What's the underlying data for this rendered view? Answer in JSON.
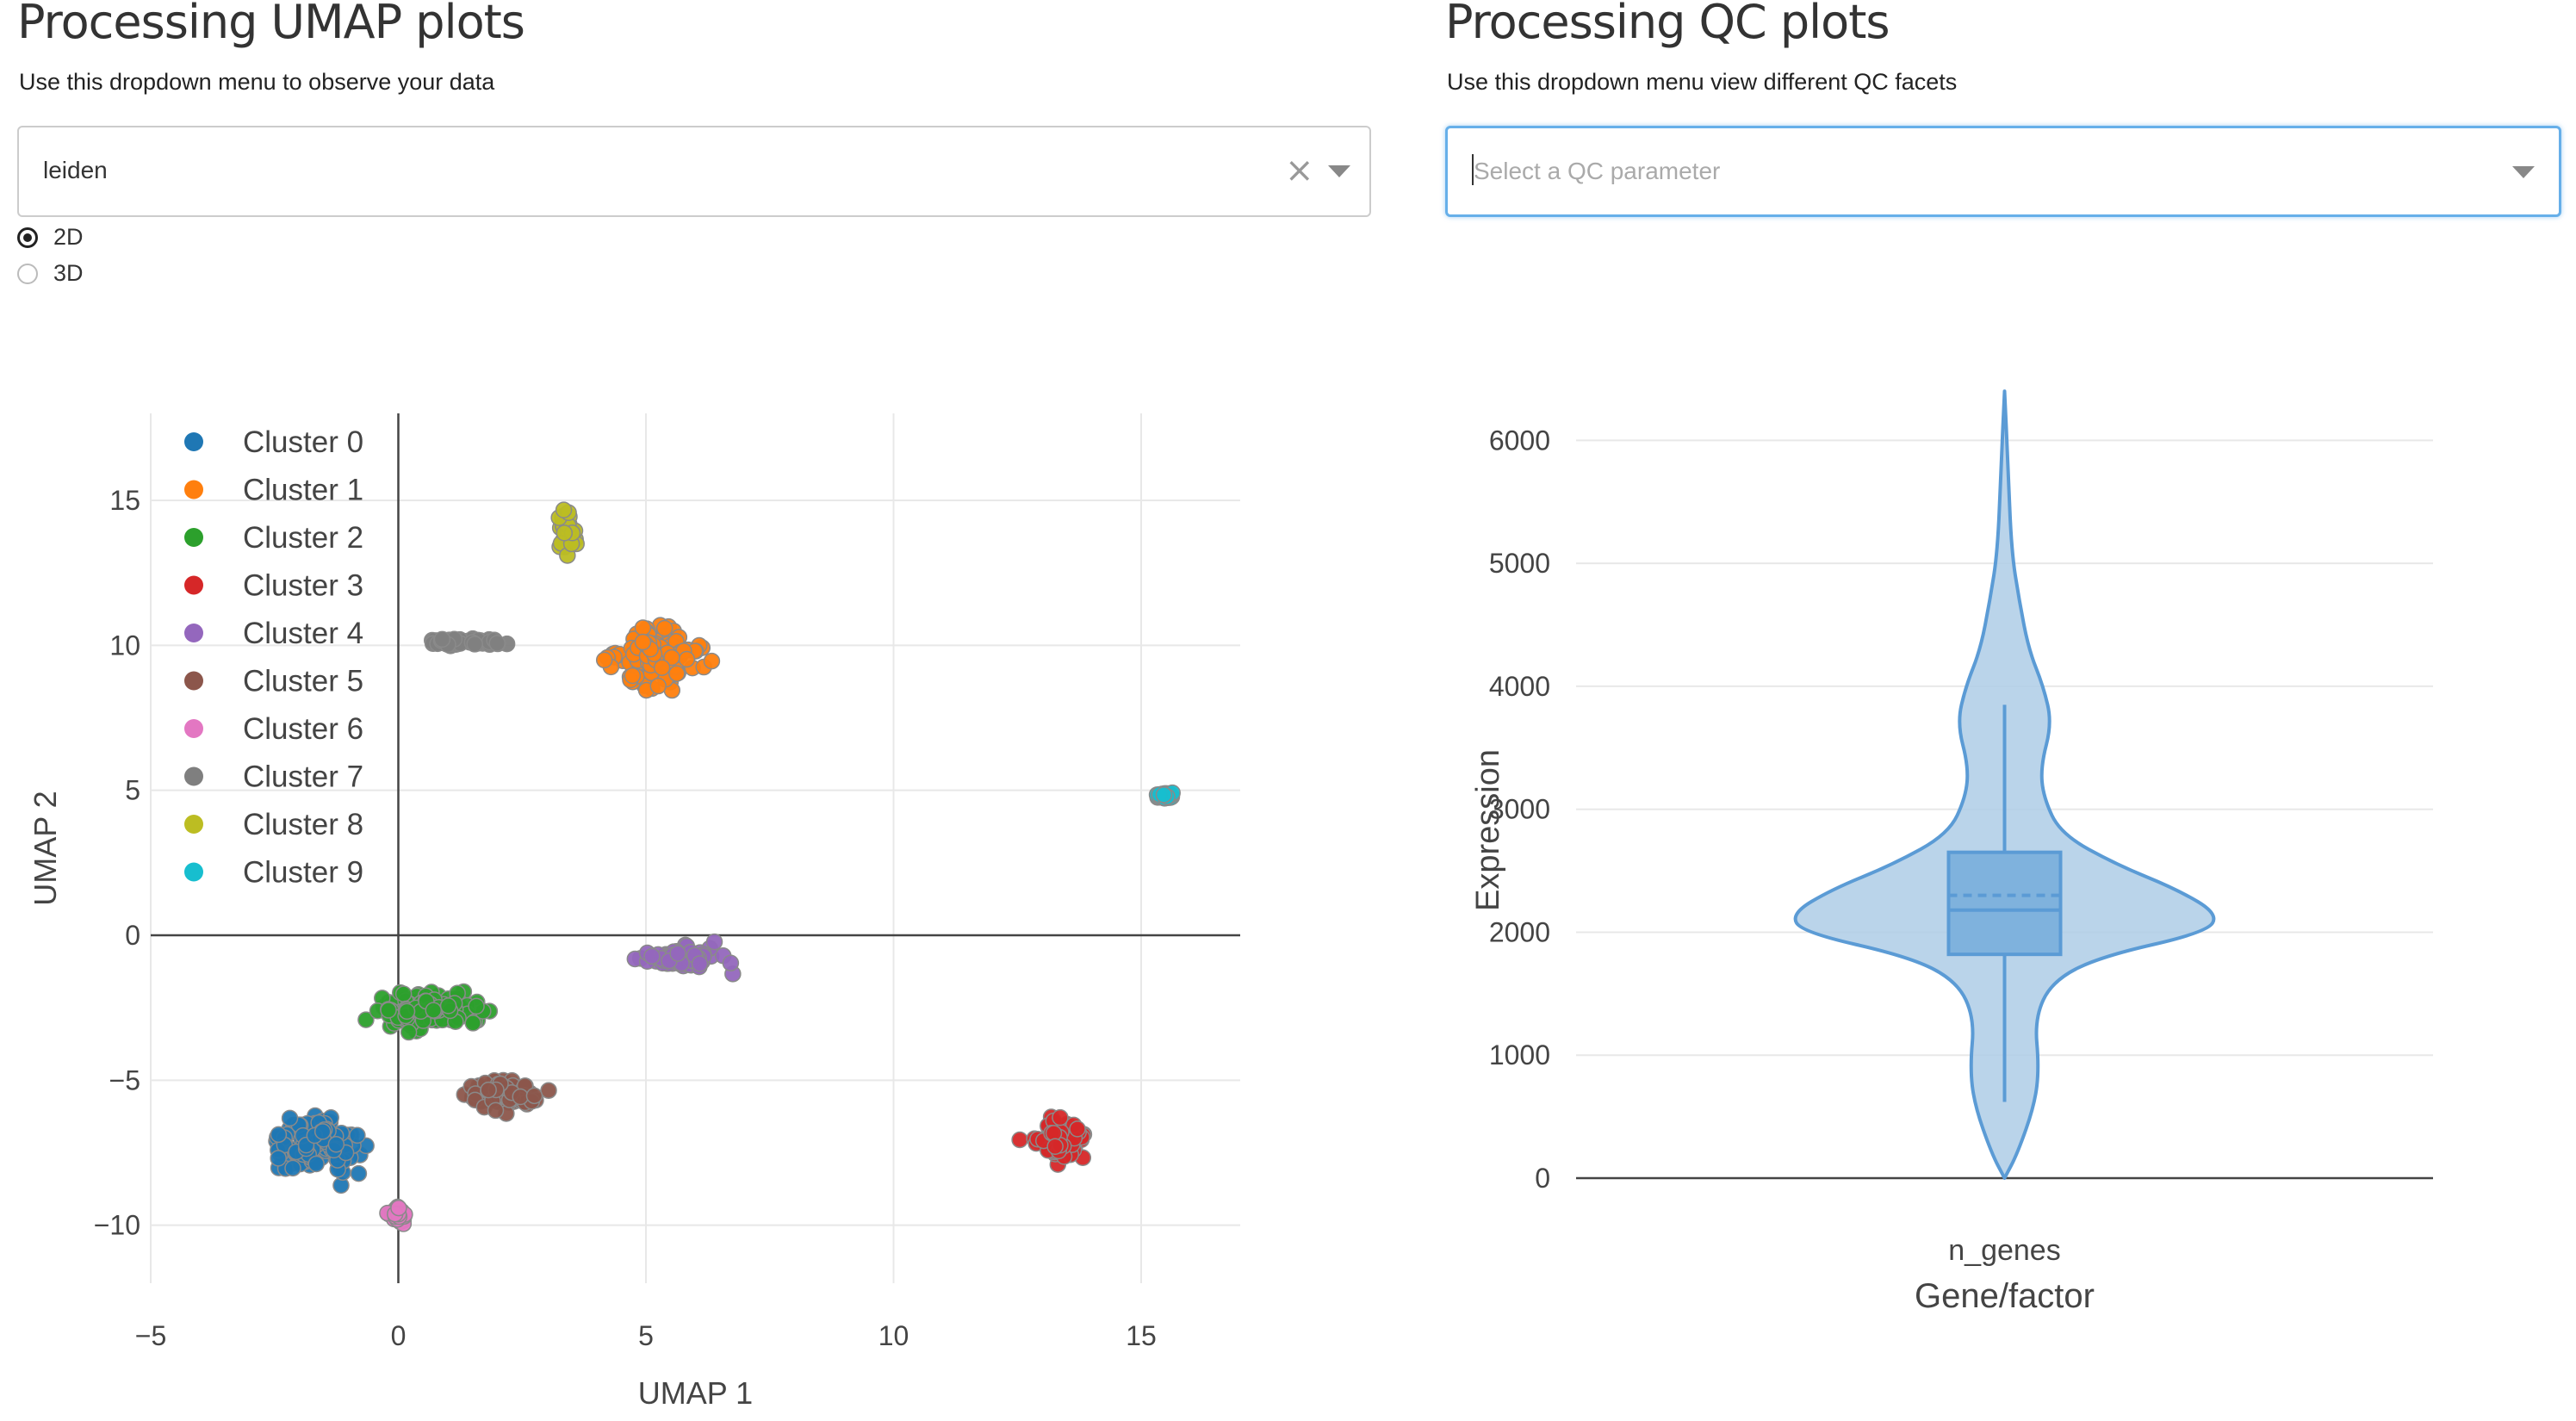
{
  "umap_panel": {
    "title": "Processing UMAP plots",
    "subtitle": "Use this dropdown menu to observe your data",
    "dropdown_value": "leiden",
    "clear_glyph": "×",
    "radio_options": [
      {
        "label": "2D",
        "checked": true
      },
      {
        "label": "3D",
        "checked": false
      }
    ]
  },
  "qc_panel": {
    "title": "Processing QC plots",
    "subtitle": "Use this dropdown menu view different QC facets",
    "dropdown_placeholder": "Select a QC parameter"
  },
  "colors": {
    "focus_border": "#66afe9",
    "violin_fill": "#aecde6",
    "violin_line": "#5b9bd5"
  },
  "chart_data": [
    {
      "type": "scatter",
      "xlabel": "UMAP 1",
      "ylabel": "UMAP 2",
      "xlim": [
        -5,
        17
      ],
      "ylim": [
        -12,
        18
      ],
      "xticks": [
        -5,
        0,
        5,
        10,
        15
      ],
      "yticks": [
        -10,
        -5,
        0,
        5,
        10,
        15
      ],
      "grid": true,
      "legend_position": "top-left",
      "series": [
        {
          "name": "Cluster 0",
          "color": "#1f77b4",
          "center": [
            -1.7,
            -7.2
          ],
          "spread": [
            1.4,
            1.4
          ]
        },
        {
          "name": "Cluster 1",
          "color": "#ff7f0e",
          "center": [
            5.2,
            9.6
          ],
          "spread": [
            1.4,
            1.6
          ]
        },
        {
          "name": "Cluster 2",
          "color": "#2ca02c",
          "center": [
            0.6,
            -2.6
          ],
          "spread": [
            1.8,
            1.1
          ]
        },
        {
          "name": "Cluster 3",
          "color": "#d62728",
          "center": [
            13.3,
            -7.0
          ],
          "spread": [
            0.9,
            1.2
          ]
        },
        {
          "name": "Cluster 4",
          "color": "#9467bd",
          "center": [
            5.8,
            -0.8
          ],
          "spread": [
            1.4,
            0.7
          ]
        },
        {
          "name": "Cluster 5",
          "color": "#8c564b",
          "center": [
            2.2,
            -5.5
          ],
          "spread": [
            1.3,
            0.9
          ]
        },
        {
          "name": "Cluster 6",
          "color": "#e377c2",
          "center": [
            0.0,
            -9.6
          ],
          "spread": [
            0.35,
            0.4
          ]
        },
        {
          "name": "Cluster 7",
          "color": "#7f7f7f",
          "center": [
            1.3,
            10.1
          ],
          "spread": [
            1.2,
            0.25
          ]
        },
        {
          "name": "Cluster 8",
          "color": "#bcbd22",
          "center": [
            3.4,
            14.0
          ],
          "spread": [
            0.35,
            1.2
          ]
        },
        {
          "name": "Cluster 9",
          "color": "#17becf",
          "center": [
            15.5,
            4.8
          ],
          "spread": [
            0.25,
            0.2
          ]
        }
      ]
    },
    {
      "type": "violin",
      "xlabel": "Gene/factor",
      "ylabel": "Expression",
      "categories": [
        "n_genes"
      ],
      "ylim": [
        0,
        6500
      ],
      "yticks": [
        0,
        1000,
        2000,
        3000,
        4000,
        5000,
        6000
      ],
      "grid": true,
      "box": {
        "q1": 1820,
        "median": 2180,
        "mean": 2300,
        "q3": 2650,
        "whisker_low": 620,
        "whisker_high": 3850
      },
      "range": [
        0,
        6400
      ]
    }
  ]
}
